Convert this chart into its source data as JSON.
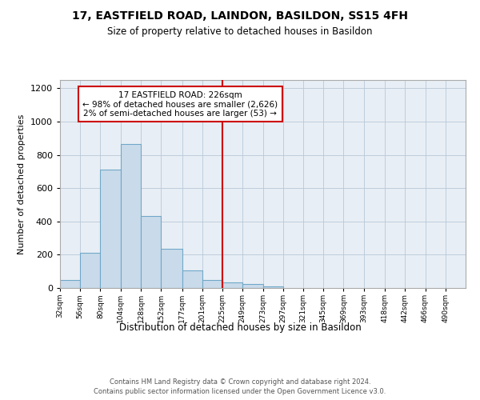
{
  "title": "17, EASTFIELD ROAD, LAINDON, BASILDON, SS15 4FH",
  "subtitle": "Size of property relative to detached houses in Basildon",
  "xlabel": "Distribution of detached houses by size in Basildon",
  "ylabel": "Number of detached properties",
  "bar_fill": "#c9daea",
  "bar_edge": "#6fa8c8",
  "bg_color": "#e8eef5",
  "grid_color": "#b8c8d8",
  "vline_color": "#cc0000",
  "vline_x_bin_index": 8,
  "annotation_text": "17 EASTFIELD ROAD: 226sqm\n← 98% of detached houses are smaller (2,626)\n2% of semi-detached houses are larger (53) →",
  "annotation_edge_color": "#cc0000",
  "bin_edges": [
    32,
    56,
    80,
    104,
    128,
    152,
    177,
    201,
    225,
    249,
    273,
    297,
    321,
    345,
    369,
    393,
    418,
    442,
    466,
    490,
    514
  ],
  "counts": [
    50,
    210,
    710,
    865,
    435,
    235,
    105,
    50,
    35,
    25,
    10,
    0,
    0,
    0,
    0,
    0,
    0,
    0,
    0,
    0
  ],
  "ylim": [
    0,
    1250
  ],
  "yticks": [
    0,
    200,
    400,
    600,
    800,
    1000,
    1200
  ],
  "footer": "Contains HM Land Registry data © Crown copyright and database right 2024.\nContains public sector information licensed under the Open Government Licence v3.0.",
  "figsize": [
    6.0,
    5.0
  ],
  "dpi": 100
}
